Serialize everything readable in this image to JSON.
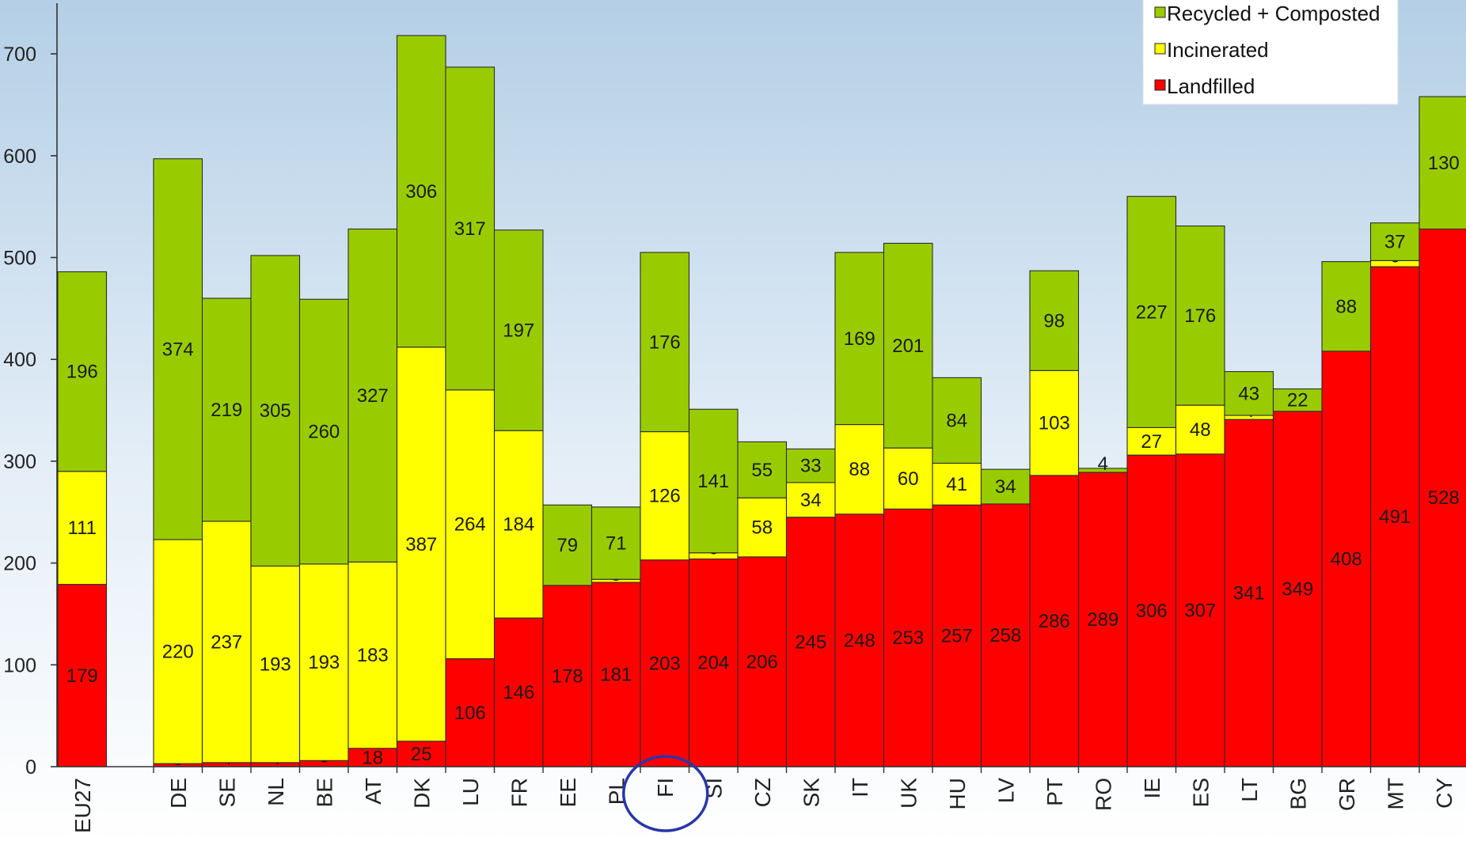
{
  "colors": {
    "recycled": "#99cc00",
    "incinerated": "#ffff00",
    "landfilled": "#ff0000",
    "annotation": "#2a36a8"
  },
  "chart_data": {
    "type": "bar",
    "stacked": true,
    "title": "",
    "xlabel": "",
    "ylabel": "",
    "ylim": [
      0,
      730
    ],
    "yticks": [
      0,
      100,
      200,
      300,
      400,
      500,
      600,
      700
    ],
    "grid": false,
    "legend_position": "top-right",
    "categories": [
      "EU27",
      "DE",
      "SE",
      "NL",
      "BE",
      "AT",
      "DK",
      "LU",
      "FR",
      "EE",
      "PL",
      "FI",
      "SI",
      "CZ",
      "SK",
      "IT",
      "UK",
      "HU",
      "LV",
      "PT",
      "RO",
      "IE",
      "ES",
      "LT",
      "BG",
      "GR",
      "MT",
      "CY"
    ],
    "series": [
      {
        "name": "Landfilled",
        "color": "#ff0000",
        "values": [
          179,
          3,
          4,
          4,
          6,
          18,
          25,
          106,
          146,
          178,
          181,
          203,
          204,
          206,
          245,
          248,
          253,
          257,
          258,
          286,
          289,
          306,
          307,
          341,
          349,
          408,
          491,
          528
        ],
        "labels": [
          "179",
          "3",
          "4",
          "4",
          "6",
          "18",
          "25",
          "106",
          "146",
          "178",
          "181",
          "203",
          "204",
          "206",
          "245",
          "248",
          "253",
          "257",
          "258",
          "286",
          "289",
          "306",
          "307",
          "341",
          "349",
          "408",
          "491",
          "528"
        ]
      },
      {
        "name": "Incinerated",
        "color": "#ffff00",
        "values": [
          111,
          220,
          237,
          193,
          193,
          183,
          387,
          264,
          184,
          0,
          3,
          126,
          6,
          58,
          34,
          88,
          60,
          41,
          0,
          103,
          0,
          27,
          48,
          4,
          0,
          0,
          6,
          0
        ],
        "labels": [
          "111",
          "220",
          "237",
          "193",
          "193",
          "183",
          "387",
          "264",
          "184",
          "",
          "3",
          "126",
          "6",
          "58",
          "34",
          "88",
          "60",
          "41",
          "",
          "103",
          "",
          "27",
          "48",
          "4",
          "",
          "",
          "6",
          ""
        ]
      },
      {
        "name": "Recycled + Composted",
        "color": "#99cc00",
        "values": [
          196,
          374,
          219,
          305,
          260,
          327,
          306,
          317,
          197,
          79,
          71,
          176,
          141,
          55,
          33,
          169,
          201,
          84,
          34,
          98,
          4,
          227,
          176,
          43,
          22,
          88,
          37,
          130
        ],
        "labels": [
          "196",
          "374",
          "219",
          "305",
          "260",
          "327",
          "306",
          "317",
          "197",
          "79",
          "71",
          "176",
          "141",
          "55",
          "33",
          "169",
          "201",
          "84",
          "34",
          "98",
          "4",
          "227",
          "176",
          "43",
          "22",
          "88",
          "37",
          "130"
        ]
      }
    ],
    "legend": [
      "Recycled + Composted",
      "Incinerated",
      "Landfilled"
    ],
    "highlight_category": "FI"
  }
}
